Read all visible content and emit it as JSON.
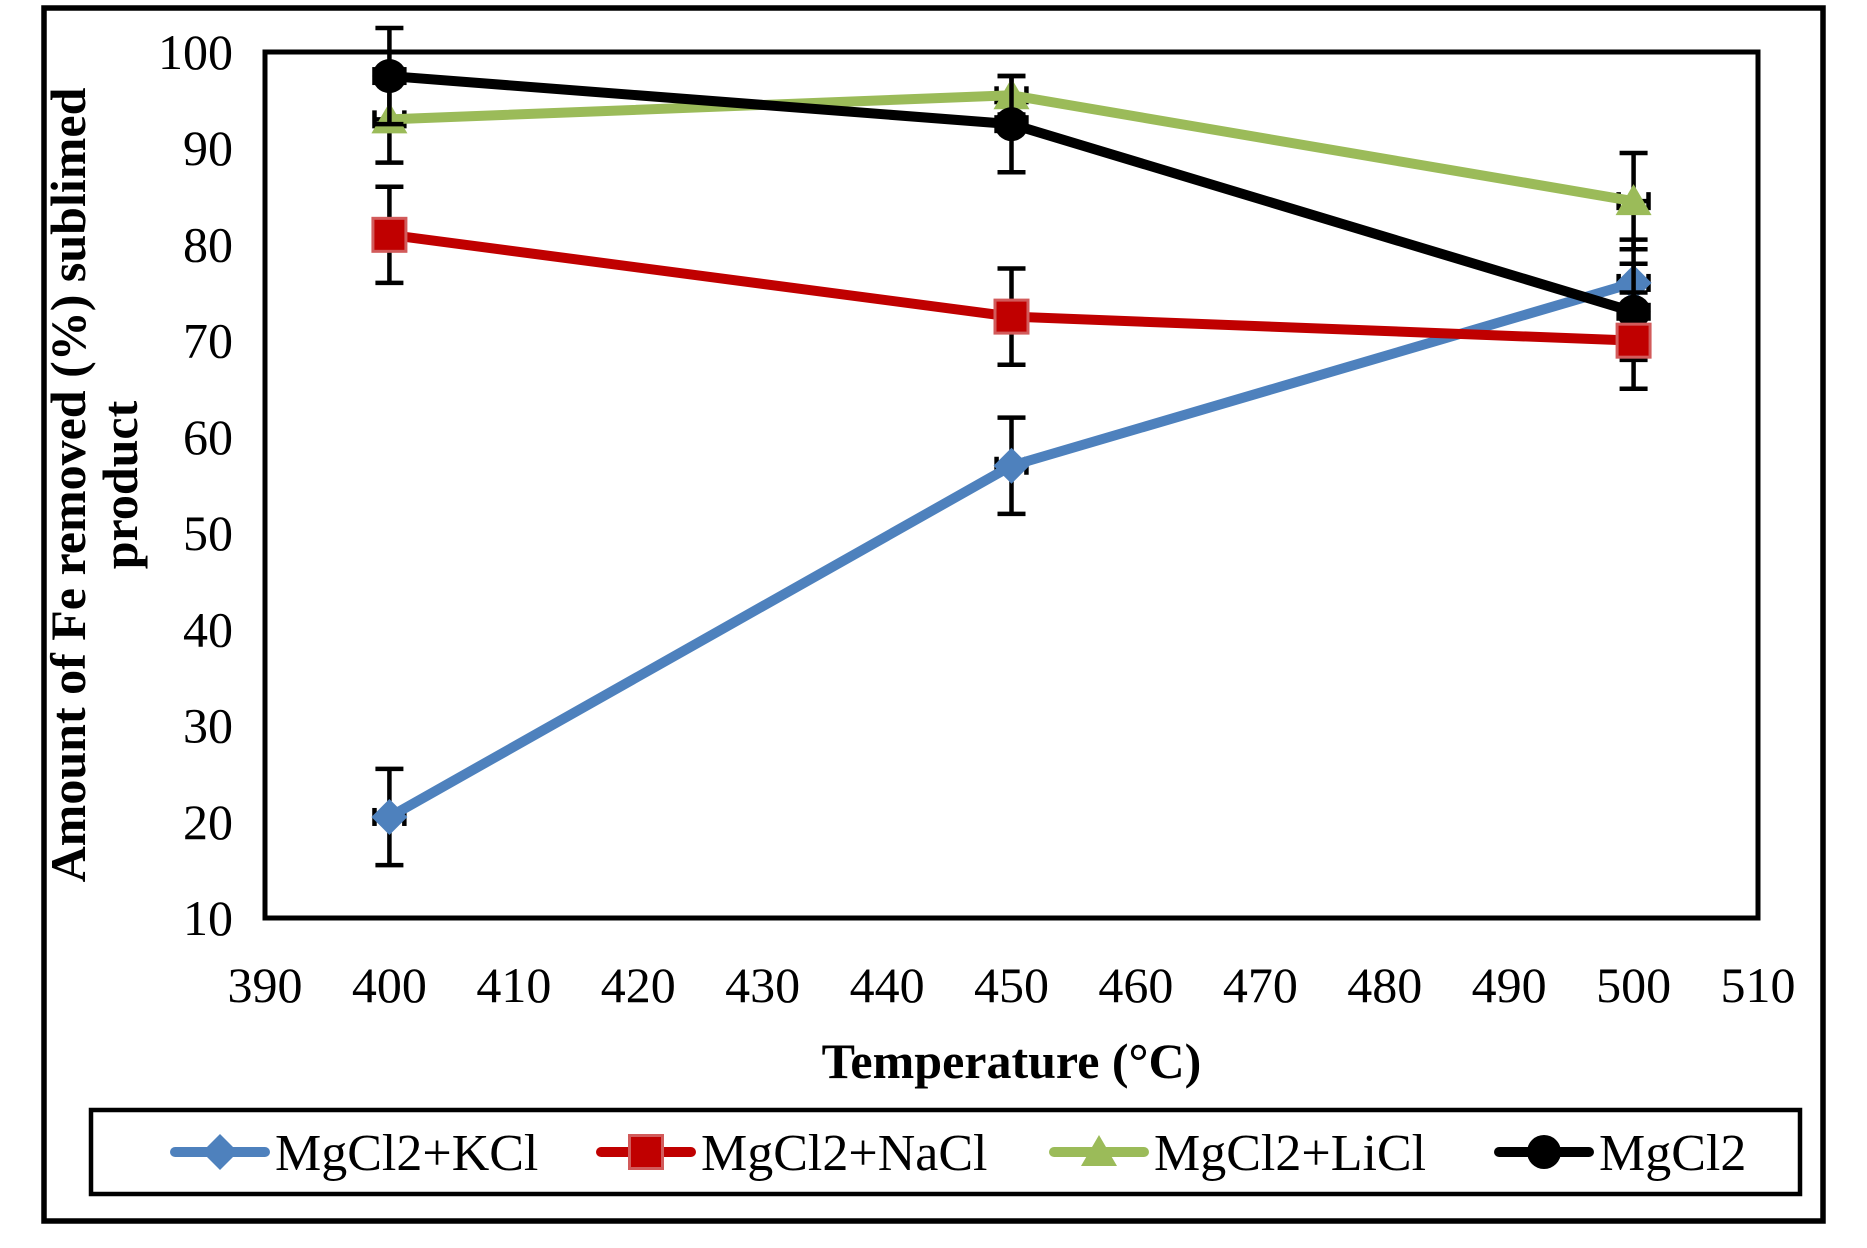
{
  "chart_data": {
    "type": "line",
    "title": "",
    "xlabel": "Temperature (°C)",
    "ylabel": "Amount of Fe removed (%) sublimed product",
    "ylabel_lines": [
      "Amount of Fe removed (%) sublimed",
      "product"
    ],
    "xlim": [
      390,
      510
    ],
    "ylim": [
      10,
      100
    ],
    "x_ticks": [
      390,
      400,
      410,
      420,
      430,
      440,
      450,
      460,
      470,
      480,
      490,
      500,
      510
    ],
    "y_ticks": [
      100,
      90,
      80,
      70,
      60,
      50,
      40,
      30,
      20,
      10
    ],
    "grid": false,
    "legend_position": "bottom",
    "x": [
      400,
      450,
      500
    ],
    "x_error": 1.2,
    "series": [
      {
        "name": "MgCl2+KCl",
        "color": "#4E81BD",
        "marker": "diamond",
        "values": [
          20.5,
          57,
          76
        ],
        "y_error": [
          5,
          5,
          4.5
        ]
      },
      {
        "name": "MgCl2+NaCl",
        "color": "#C00000",
        "marker": "square",
        "values": [
          81,
          72.5,
          70
        ],
        "y_error": [
          5,
          5,
          5
        ],
        "marker_border": "#D25B5B"
      },
      {
        "name": "MgCl2+LiCl",
        "color": "#9BBB59",
        "marker": "triangle",
        "values": [
          93,
          95.5,
          84.5
        ],
        "y_error": [
          4.5,
          2,
          5
        ]
      },
      {
        "name": "MgCl2",
        "color": "#000000",
        "marker": "circle",
        "values": [
          97.5,
          92.5,
          73
        ],
        "y_error": [
          5,
          5,
          5
        ]
      }
    ],
    "error_bar_color": "#000000",
    "axis_color": "#000000",
    "text_color": "#000000",
    "background": "#FFFFFF"
  }
}
